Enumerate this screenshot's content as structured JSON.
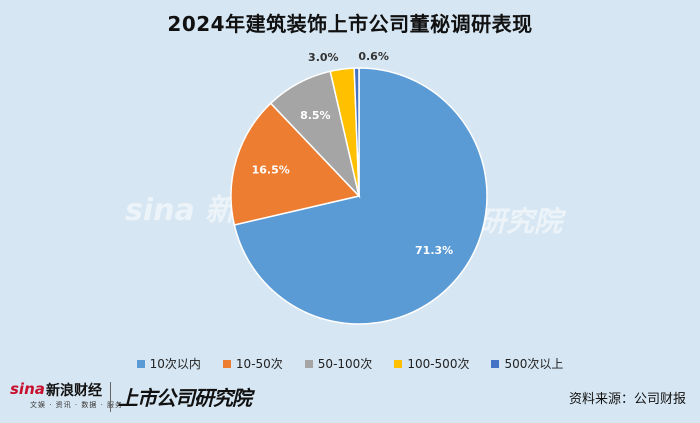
{
  "title": "2024年建筑装饰上市公司董秘调研表现",
  "chart_data": {
    "type": "pie",
    "categories": [
      "10次以内",
      "10-50次",
      "50-100次",
      "100-500次",
      "500次以上"
    ],
    "values": [
      71.3,
      16.5,
      8.5,
      3.0,
      0.6
    ],
    "labels": [
      "71.3%",
      "16.5%",
      "8.5%",
      "3.0%",
      "0.6%"
    ],
    "colors": [
      "#5b9bd5",
      "#ed7d31",
      "#a5a5a5",
      "#ffc000",
      "#4472c4"
    ],
    "legend_position": "bottom"
  },
  "footer": {
    "sina_logo": "sina",
    "sina_name": "新浪财经",
    "sina_sub": "文娱 · 资讯 · 数据 · 服务",
    "research_logo": "上市公司研究院",
    "source": "资料来源：公司财报"
  },
  "watermark": {
    "left": "sina 新浪",
    "right": "研究院"
  }
}
